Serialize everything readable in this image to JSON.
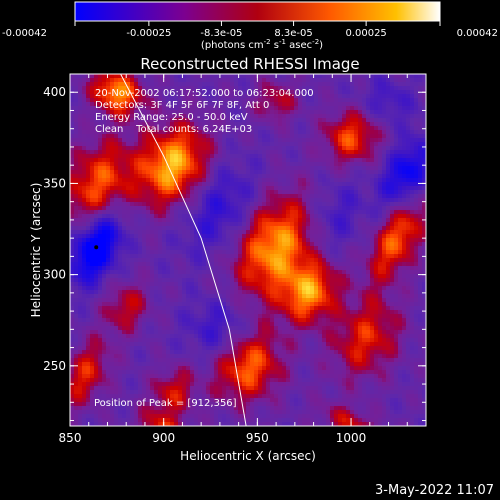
{
  "colorbar": {
    "ticks": [
      "-0.00042",
      "-0.00025",
      "-8.3e-05",
      "8.3e-05",
      "0.00025",
      "0.00042"
    ],
    "tick_values": [
      -0.00042,
      -0.00025,
      -8.3e-05,
      8.3e-05,
      0.00025,
      0.00042
    ],
    "range": [
      -0.00042,
      0.00042
    ],
    "units_base": "(photons cm",
    "units_exp1": "-2",
    "units_mid1": " s",
    "units_exp2": "-1",
    "units_mid2": " asec",
    "units_exp3": "-2",
    "units_end": ")",
    "colors": [
      "#0000ff",
      "#7c0090",
      "#d00000",
      "#ff7800",
      "#ffff40",
      "#ffffff"
    ]
  },
  "chart_data": {
    "type": "heatmap",
    "title": "Reconstructed RHESSI Image",
    "xlabel": "Heliocentric X (arcsec)",
    "ylabel": "Heliocentric Y (arcsec)",
    "xlim": [
      850,
      1040
    ],
    "ylim": [
      217,
      410
    ],
    "x_ticks": [
      850,
      900,
      950,
      1000
    ],
    "x_tick_labels": [
      "850",
      "900",
      "950",
      "1000"
    ],
    "y_ticks": [
      250,
      300,
      350,
      400
    ],
    "y_tick_labels": [
      "250",
      "300",
      "350",
      "400"
    ],
    "annotations": [
      "20-Nov-2002 06:17:52.000 to 06:23:04.000",
      "Detectors: 3F 4F 5F 6F 7F 8F, Att 0",
      "Energy Range: 25.0 - 50.0 keV",
      "Clean    Total counts: 6.24E+03"
    ],
    "peak_label": "Position of Peak = [912,356]",
    "peak": [
      912,
      356
    ],
    "limb_points": [
      [
        877,
        410
      ],
      [
        900,
        365
      ],
      [
        920,
        320
      ],
      [
        935,
        270
      ],
      [
        944,
        217
      ]
    ],
    "bright_regions": [
      {
        "x": 905,
        "y": 360,
        "sx": 12,
        "sy": 16,
        "v": 0.00042
      },
      {
        "x": 875,
        "y": 400,
        "sx": 10,
        "sy": 8,
        "v": 0.00038
      },
      {
        "x": 865,
        "y": 350,
        "sx": 12,
        "sy": 18,
        "v": 0.0003
      },
      {
        "x": 960,
        "y": 315,
        "sx": 14,
        "sy": 20,
        "v": 0.0004
      },
      {
        "x": 978,
        "y": 290,
        "sx": 10,
        "sy": 12,
        "v": 0.00036
      },
      {
        "x": 945,
        "y": 250,
        "sx": 12,
        "sy": 14,
        "v": 0.00033
      },
      {
        "x": 1008,
        "y": 265,
        "sx": 12,
        "sy": 16,
        "v": 0.00025
      },
      {
        "x": 1025,
        "y": 320,
        "sx": 8,
        "sy": 18,
        "v": 0.00032
      },
      {
        "x": 1000,
        "y": 375,
        "sx": 10,
        "sy": 10,
        "v": 0.00029
      },
      {
        "x": 960,
        "y": 395,
        "sx": 8,
        "sy": 8,
        "v": 0.00018
      },
      {
        "x": 880,
        "y": 282,
        "sx": 8,
        "sy": 10,
        "v": 0.0002
      },
      {
        "x": 905,
        "y": 235,
        "sx": 8,
        "sy": 10,
        "v": 0.00022
      },
      {
        "x": 900,
        "y": 215,
        "sx": 10,
        "sy": 6,
        "v": 0.00022
      },
      {
        "x": 1000,
        "y": 218,
        "sx": 12,
        "sy": 6,
        "v": 0.0002
      },
      {
        "x": 858,
        "y": 245,
        "sx": 8,
        "sy": 14,
        "v": 0.00024
      }
    ],
    "dark_regions": [
      {
        "x": 864,
        "y": 315,
        "sx": 8,
        "sy": 14,
        "v": -0.00042
      },
      {
        "x": 1030,
        "y": 355,
        "sx": 8,
        "sy": 14,
        "v": -0.0003
      },
      {
        "x": 930,
        "y": 335,
        "sx": 12,
        "sy": 18,
        "v": -0.00018
      },
      {
        "x": 990,
        "y": 330,
        "sx": 10,
        "sy": 16,
        "v": -0.00014
      },
      {
        "x": 930,
        "y": 270,
        "sx": 12,
        "sy": 12,
        "v": -0.00016
      },
      {
        "x": 1020,
        "y": 395,
        "sx": 10,
        "sy": 8,
        "v": -0.00012
      }
    ]
  },
  "timestamp": "3-May-2022 11:07"
}
